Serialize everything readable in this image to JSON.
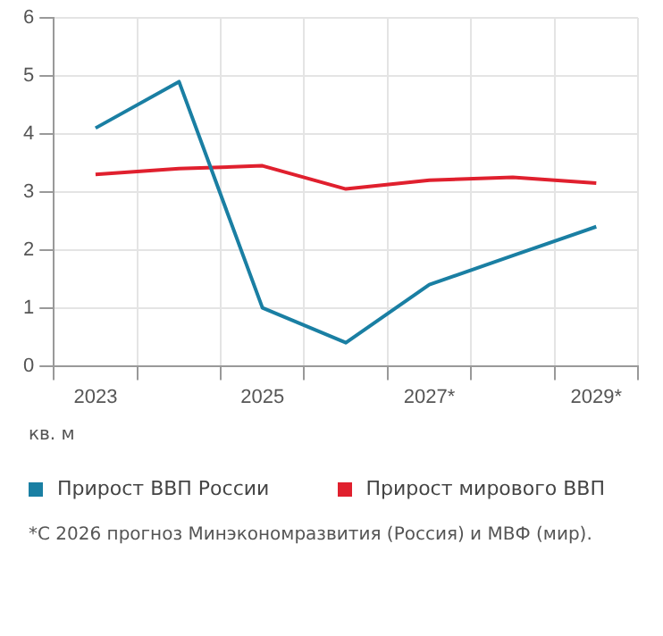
{
  "chart_data": {
    "type": "line",
    "categories": [
      "2023",
      null,
      "2025",
      null,
      "2027*",
      null,
      "2029*"
    ],
    "series": [
      {
        "name": "Прирост ВВП России",
        "color": "#1a7fa3",
        "values": [
          4.1,
          4.9,
          1.0,
          0.4,
          1.4,
          1.9,
          2.4
        ]
      },
      {
        "name": "Прирост мирового ВВП",
        "color": "#e0202e",
        "values": [
          3.3,
          3.4,
          3.45,
          3.05,
          3.2,
          3.25,
          3.15
        ]
      }
    ],
    "ylim": [
      0,
      6
    ],
    "yticks": [
      0,
      1,
      2,
      3,
      4,
      5,
      6
    ],
    "grid": true,
    "legend": "bottom",
    "marker": "none",
    "line_style": "solid",
    "annotations": [
      "кв. м",
      "*С 2026 прогноз Минэкономразвития (Россия) и МВФ (мир)."
    ]
  }
}
